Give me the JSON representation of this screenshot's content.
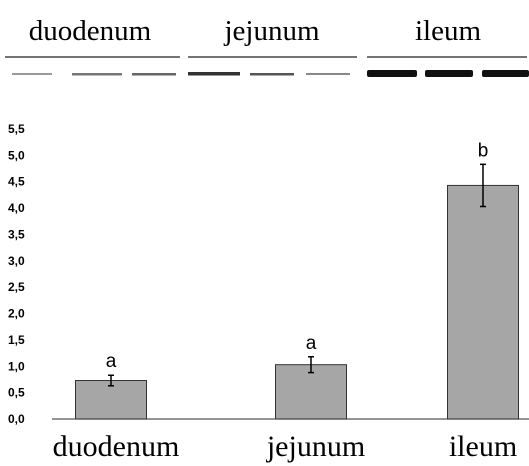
{
  "blot": {
    "groups": [
      "duodenum",
      "jejunum",
      "ileum"
    ]
  },
  "chart_data": {
    "type": "bar",
    "categories": [
      "duodenum",
      "jejunum",
      "ileum"
    ],
    "values": [
      0.73,
      1.03,
      4.43
    ],
    "errors": [
      0.1,
      0.15,
      0.4
    ],
    "annotations": [
      "a",
      "a",
      "b"
    ],
    "color": "#a6a6a6",
    "ylim": [
      0,
      5.5
    ],
    "yticks": [
      {
        "value": 0,
        "label": "0,0"
      },
      {
        "value": 0.5,
        "label": "0,5"
      },
      {
        "value": 1,
        "label": "1,0"
      },
      {
        "value": 1.5,
        "label": "1,5"
      },
      {
        "value": 2,
        "label": "2,0"
      },
      {
        "value": 2.5,
        "label": "2,5"
      },
      {
        "value": 3,
        "label": "3,0"
      },
      {
        "value": 3.5,
        "label": "3,5"
      },
      {
        "value": 4,
        "label": "4,0"
      },
      {
        "value": 4.5,
        "label": "4,5"
      },
      {
        "value": 5,
        "label": "5,0"
      },
      {
        "value": 5.5,
        "label": "5,5"
      }
    ],
    "grid": false
  }
}
